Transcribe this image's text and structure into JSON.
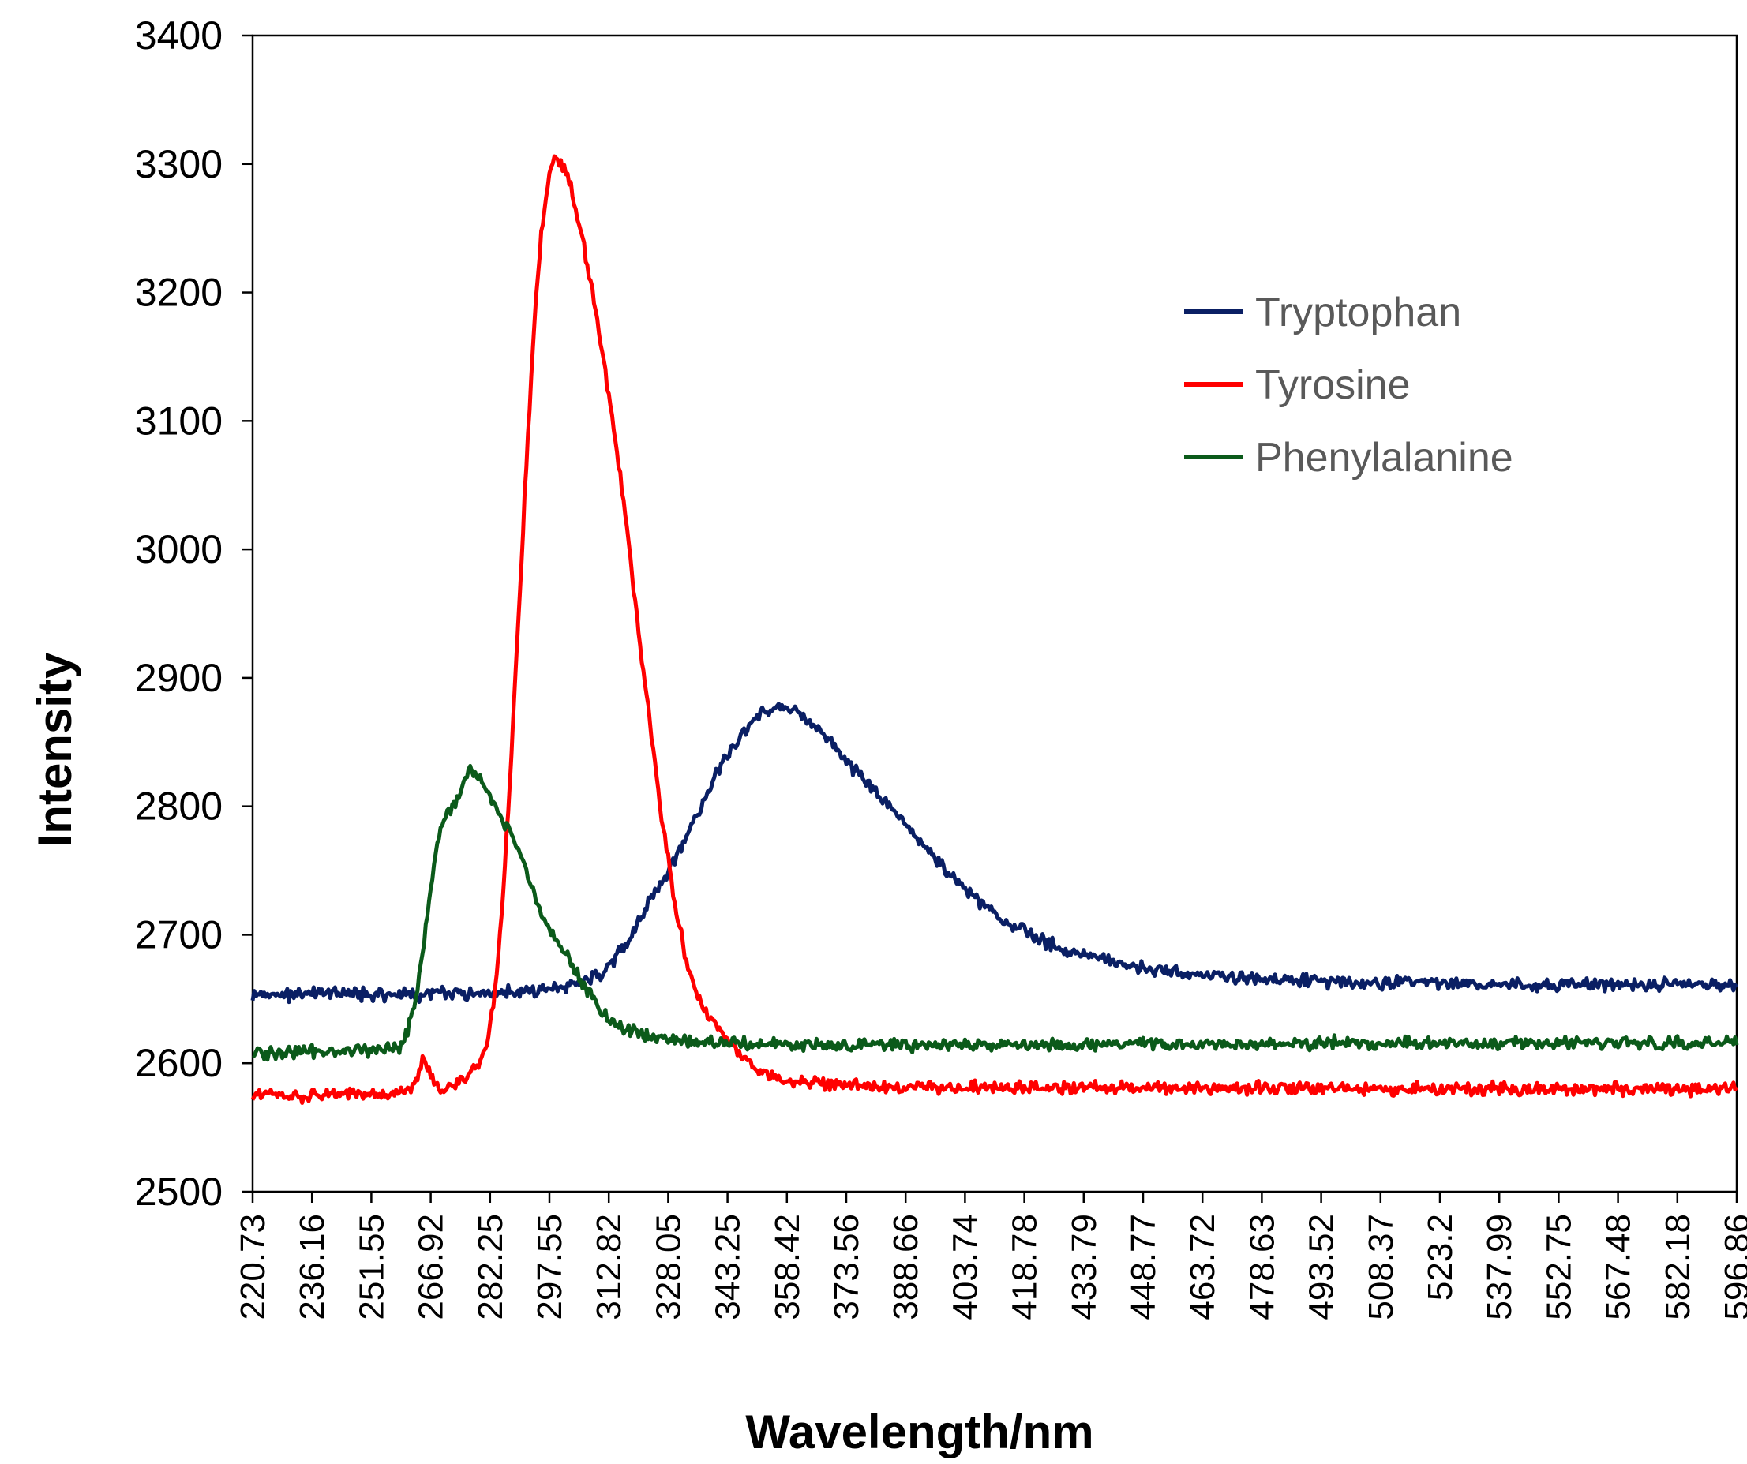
{
  "chart_data": {
    "type": "line",
    "title": "",
    "xlabel": "Wavelength/nm",
    "ylabel": "Intensity",
    "ylim": [
      2500,
      3400
    ],
    "yticks": [
      2500,
      2600,
      2700,
      2800,
      2900,
      3000,
      3100,
      3200,
      3300,
      3400
    ],
    "xlim": [
      220.73,
      596.86
    ],
    "xticks": [
      "220.73",
      "236.16",
      "251.55",
      "266.92",
      "282.25",
      "297.55",
      "312.82",
      "328.05",
      "343.25",
      "358.42",
      "373.56",
      "388.66",
      "403.74",
      "418.78",
      "433.79",
      "448.77",
      "463.72",
      "478.63",
      "493.52",
      "508.37",
      "523.2",
      "537.99",
      "552.75",
      "567.48",
      "582.18",
      "596.86"
    ],
    "grid": false,
    "legend_position": "upper-right",
    "series": [
      {
        "name": "Tryptophan",
        "color": "#0a1f64",
        "points": [
          [
            220.73,
            2652
          ],
          [
            240,
            2654
          ],
          [
            260,
            2653
          ],
          [
            280,
            2655
          ],
          [
            295,
            2657
          ],
          [
            305,
            2663
          ],
          [
            310,
            2672
          ],
          [
            315,
            2690
          ],
          [
            320,
            2718
          ],
          [
            325,
            2745
          ],
          [
            330,
            2772
          ],
          [
            335,
            2805
          ],
          [
            340,
            2835
          ],
          [
            345,
            2858
          ],
          [
            350,
            2872
          ],
          [
            355,
            2878
          ],
          [
            360,
            2872
          ],
          [
            365,
            2858
          ],
          [
            370,
            2840
          ],
          [
            375,
            2822
          ],
          [
            380,
            2807
          ],
          [
            385,
            2790
          ],
          [
            390,
            2772
          ],
          [
            395,
            2755
          ],
          [
            400,
            2738
          ],
          [
            405,
            2725
          ],
          [
            410,
            2714
          ],
          [
            415,
            2705
          ],
          [
            420,
            2697
          ],
          [
            425,
            2690
          ],
          [
            430,
            2685
          ],
          [
            435,
            2682
          ],
          [
            440,
            2678
          ],
          [
            445,
            2675
          ],
          [
            450,
            2672
          ],
          [
            460,
            2669
          ],
          [
            470,
            2667
          ],
          [
            480,
            2665
          ],
          [
            500,
            2663
          ],
          [
            520,
            2662
          ],
          [
            540,
            2661
          ],
          [
            560,
            2661
          ],
          [
            596.86,
            2661
          ]
        ]
      },
      {
        "name": "Tyrosine",
        "color": "#ff0000",
        "points": [
          [
            220.73,
            2575
          ],
          [
            235,
            2575
          ],
          [
            250,
            2575
          ],
          [
            258,
            2576
          ],
          [
            262,
            2585
          ],
          [
            264,
            2603
          ],
          [
            266,
            2590
          ],
          [
            268,
            2580
          ],
          [
            272,
            2583
          ],
          [
            275,
            2590
          ],
          [
            278,
            2600
          ],
          [
            280,
            2615
          ],
          [
            282,
            2650
          ],
          [
            284,
            2720
          ],
          [
            286,
            2820
          ],
          [
            288,
            2940
          ],
          [
            290,
            3060
          ],
          [
            292,
            3170
          ],
          [
            294,
            3250
          ],
          [
            296,
            3295
          ],
          [
            298,
            3305
          ],
          [
            300,
            3295
          ],
          [
            302,
            3275
          ],
          [
            304,
            3245
          ],
          [
            306,
            3215
          ],
          [
            308,
            3180
          ],
          [
            310,
            3140
          ],
          [
            312,
            3100
          ],
          [
            314,
            3055
          ],
          [
            316,
            3005
          ],
          [
            318,
            2950
          ],
          [
            320,
            2900
          ],
          [
            322,
            2850
          ],
          [
            324,
            2800
          ],
          [
            326,
            2760
          ],
          [
            328,
            2720
          ],
          [
            330,
            2690
          ],
          [
            332,
            2665
          ],
          [
            334,
            2648
          ],
          [
            336,
            2637
          ],
          [
            338,
            2630
          ],
          [
            340,
            2622
          ],
          [
            342,
            2612
          ],
          [
            345,
            2603
          ],
          [
            348,
            2595
          ],
          [
            352,
            2590
          ],
          [
            358,
            2586
          ],
          [
            365,
            2584
          ],
          [
            380,
            2582
          ],
          [
            400,
            2581
          ],
          [
            450,
            2581
          ],
          [
            500,
            2580
          ],
          [
            550,
            2580
          ],
          [
            596.86,
            2580
          ]
        ]
      },
      {
        "name": "Phenylalanine",
        "color": "#0b5a1a",
        "points": [
          [
            220.73,
            2608
          ],
          [
            235,
            2609
          ],
          [
            250,
            2610
          ],
          [
            258,
            2612
          ],
          [
            260,
            2625
          ],
          [
            262,
            2650
          ],
          [
            264,
            2690
          ],
          [
            266,
            2740
          ],
          [
            268,
            2780
          ],
          [
            270,
            2795
          ],
          [
            272,
            2800
          ],
          [
            274,
            2815
          ],
          [
            276,
            2828
          ],
          [
            278,
            2822
          ],
          [
            280,
            2812
          ],
          [
            282,
            2800
          ],
          [
            284,
            2790
          ],
          [
            286,
            2782
          ],
          [
            288,
            2768
          ],
          [
            290,
            2750
          ],
          [
            292,
            2733
          ],
          [
            294,
            2717
          ],
          [
            296,
            2705
          ],
          [
            298,
            2695
          ],
          [
            300,
            2685
          ],
          [
            302,
            2675
          ],
          [
            304,
            2665
          ],
          [
            306,
            2655
          ],
          [
            308,
            2646
          ],
          [
            310,
            2638
          ],
          [
            312,
            2632
          ],
          [
            315,
            2626
          ],
          [
            320,
            2622
          ],
          [
            330,
            2618
          ],
          [
            340,
            2616
          ],
          [
            360,
            2614
          ],
          [
            400,
            2614
          ],
          [
            450,
            2615
          ],
          [
            500,
            2616
          ],
          [
            550,
            2616
          ],
          [
            596.86,
            2616
          ]
        ]
      }
    ]
  }
}
